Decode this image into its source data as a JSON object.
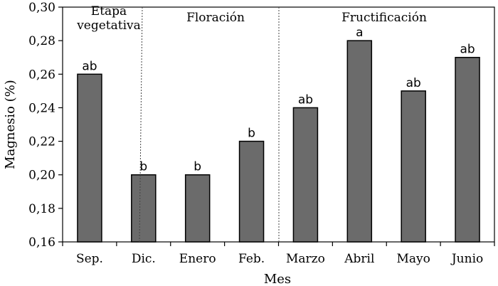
{
  "chart_data": {
    "type": "bar",
    "title": "",
    "xlabel": "Mes",
    "ylabel": "Magnesio (%)",
    "ylim": [
      0.16,
      0.3
    ],
    "y_ticks": [
      "0,16",
      "0,18",
      "0,20",
      "0,22",
      "0,24",
      "0,26",
      "0,28",
      "0,30"
    ],
    "categories": [
      "Sep.",
      "Dic.",
      "Enero",
      "Feb.",
      "Marzo",
      "Abril",
      "Mayo",
      "Junio"
    ],
    "values": [
      0.26,
      0.2,
      0.2,
      0.22,
      0.24,
      0.28,
      0.25,
      0.27
    ],
    "labels": [
      "ab",
      "b",
      "b",
      "b",
      "ab",
      "a",
      "ab",
      "ab"
    ],
    "grid": false,
    "bar_color": "#6b6b6b",
    "phases": [
      {
        "lines": [
          "Etapa",
          "vegetativa"
        ],
        "from": 0,
        "to": 0
      },
      {
        "lines": [
          "Floración"
        ],
        "from": 1,
        "to": 3
      },
      {
        "lines": [
          "Fructificación"
        ],
        "from": 4,
        "to": 7
      }
    ]
  }
}
